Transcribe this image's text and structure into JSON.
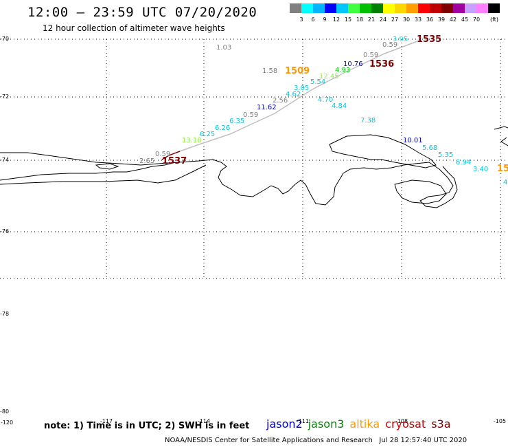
{
  "header": {
    "title": "12:00 – 23:59 UTC 07/20/2020",
    "subtitle": "12 hour collection of altimeter wave heights"
  },
  "legend": {
    "unit": "(ft)",
    "colors": [
      "#808080",
      "#00ffff",
      "#00b4ff",
      "#0000ff",
      "#00c8ff",
      "#40ff40",
      "#00c000",
      "#008000",
      "#ffff00",
      "#ffd700",
      "#ffa000",
      "#ff0000",
      "#c00000",
      "#800000",
      "#a000a0",
      "#c8a0ff",
      "#ff80ff",
      "#000000"
    ],
    "labels": [
      "3",
      "6",
      "9",
      "12",
      "15",
      "18",
      "21",
      "24",
      "27",
      "30",
      "33",
      "36",
      "39",
      "42",
      "45",
      "70"
    ]
  },
  "axes": {
    "lat_labels": [
      "-70",
      "-72",
      "-74",
      "-76",
      "-78",
      "-80"
    ],
    "lon_labels": [
      "-120",
      "-117",
      "-114",
      "-111",
      "-108",
      "-105"
    ]
  },
  "wave_labels": [
    {
      "text": "3.95",
      "color": "#00e0e0"
    },
    {
      "text": "0.59",
      "color": "#808080"
    },
    {
      "text": "1.03",
      "color": "#808080"
    },
    {
      "text": "0.59",
      "color": "#808080"
    },
    {
      "text": "10.76",
      "color": "#0000cc"
    },
    {
      "text": "4.93",
      "color": "#00cc00"
    },
    {
      "text": "12.45",
      "color": "#90ee40"
    },
    {
      "text": "1.58",
      "color": "#808080"
    },
    {
      "text": "5.54",
      "color": "#00c8e0"
    },
    {
      "text": "3.05",
      "color": "#00c8e0"
    },
    {
      "text": "4.62",
      "color": "#00c8e0"
    },
    {
      "text": "4.70",
      "color": "#00c8e0"
    },
    {
      "text": "2.56",
      "color": "#808080"
    },
    {
      "text": "11.62",
      "color": "#0000cc"
    },
    {
      "text": "4.84",
      "color": "#00c8e0"
    },
    {
      "text": "0.59",
      "color": "#808080"
    },
    {
      "text": "6.35",
      "color": "#00c8e0"
    },
    {
      "text": "7.38",
      "color": "#00c8e0"
    },
    {
      "text": "6.26",
      "color": "#00c8e0"
    },
    {
      "text": "6.25",
      "color": "#00c8e0"
    },
    {
      "text": "13.18",
      "color": "#90ee40"
    },
    {
      "text": "10.01",
      "color": "#0000cc"
    },
    {
      "text": "5.68",
      "color": "#00c8e0"
    },
    {
      "text": "5.35",
      "color": "#00c8e0"
    },
    {
      "text": "0.59",
      "color": "#808080"
    },
    {
      "text": "2.65",
      "color": "#808080"
    },
    {
      "text": "6.94",
      "color": "#00c8e0"
    },
    {
      "text": "3.40",
      "color": "#00c8e0"
    },
    {
      "text": "4",
      "color": "#00c8e0"
    }
  ],
  "pass_labels": [
    {
      "text": "1535",
      "color": "#800000"
    },
    {
      "text": "1536",
      "color": "#800000"
    },
    {
      "text": "1509",
      "color": "#ff9900"
    },
    {
      "text": "1537",
      "color": "#800000"
    },
    {
      "text": "15",
      "color": "#ff9900"
    }
  ],
  "footer": {
    "note": "note: 1) Time is in UTC; 2) SWH is in feet",
    "satellites": [
      {
        "name": "jason2",
        "color": "#0000cc"
      },
      {
        "name": "jason3",
        "color": "#008800"
      },
      {
        "name": "altika",
        "color": "#ff9900"
      },
      {
        "name": "cryosat",
        "color": "#cc0000"
      },
      {
        "name": "s3a",
        "color": "#800000"
      }
    ],
    "credit": "NOAA/NESDIS Center for Satellite Applications and Research",
    "timestamp": "Jul 28 12:57:40 UTC 2020"
  }
}
